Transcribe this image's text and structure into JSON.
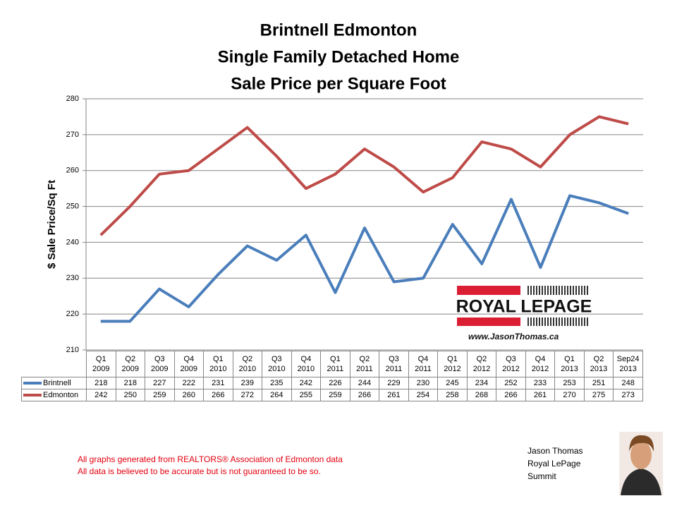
{
  "chart_data": {
    "type": "line",
    "title": [
      "Brintnell Edmonton",
      "Single Family Detached Home",
      "Sale Price per Square Foot"
    ],
    "y_label": "$ Sale Price/Sq Ft",
    "categories": [
      "Q1\n2009",
      "Q2\n2009",
      "Q3\n2009",
      "Q4\n2009",
      "Q1\n2010",
      "Q2\n2010",
      "Q3\n2010",
      "Q4\n2010",
      "Q1\n2011",
      "Q2\n2011",
      "Q3\n2011",
      "Q4\n2011",
      "Q1\n2012",
      "Q2\n2012",
      "Q3\n2012",
      "Q4\n2012",
      "Q1\n2013",
      "Q2\n2013",
      "Sep24\n2013"
    ],
    "series": [
      {
        "name": "Brintnell",
        "color": "#4a7ebb",
        "values": [
          218,
          218,
          227,
          222,
          231,
          239,
          235,
          242,
          226,
          244,
          229,
          230,
          245,
          234,
          252,
          233,
          253,
          251,
          248
        ]
      },
      {
        "name": "Edmonton",
        "color": "#be4b48",
        "values": [
          242,
          250,
          259,
          260,
          266,
          272,
          264,
          255,
          259,
          266,
          261,
          254,
          258,
          268,
          266,
          261,
          270,
          275,
          273
        ]
      }
    ],
    "ylim": [
      210,
      280
    ],
    "yticks": [
      210,
      220,
      230,
      240,
      250,
      260,
      270,
      280
    ],
    "grid": true
  },
  "footer": {
    "notes": [
      "All graphs generated from REALTORS® Association of Edmonton data",
      "All data is believed to be accurate but is not guaranteed to be so."
    ],
    "agent": [
      "Jason Thomas",
      "Royal LePage",
      "Summit"
    ],
    "logo": {
      "brand": "ROYAL LEPAGE",
      "url": "www.JasonThomas.ca"
    }
  }
}
